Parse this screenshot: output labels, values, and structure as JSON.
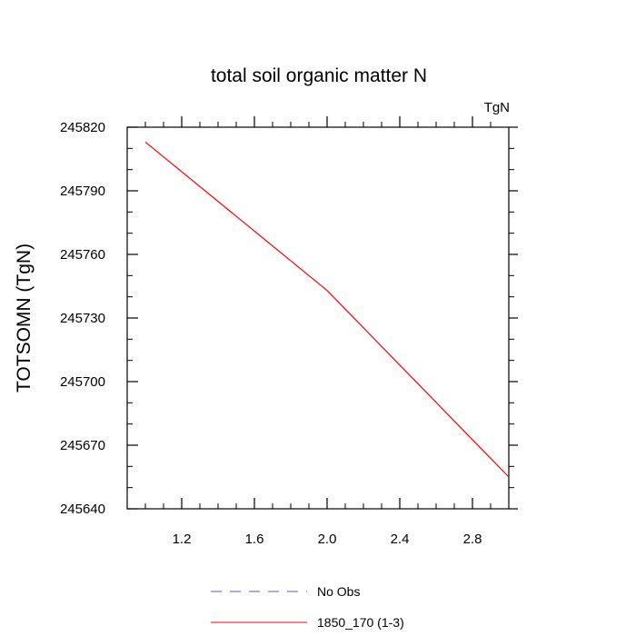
{
  "chart_data": {
    "type": "line",
    "title": "total soil organic matter N",
    "units": "TgN",
    "xlabel": "",
    "ylabel": "TOTSOMN  (TgN)",
    "xlim": [
      0.9,
      3.0
    ],
    "ylim": [
      245640,
      245820
    ],
    "xticks": [
      "1.2",
      "1.6",
      "2.0",
      "2.4",
      "2.8"
    ],
    "yticks": [
      "245640",
      "245670",
      "245700",
      "245730",
      "245760",
      "245790",
      "245820"
    ],
    "grid": false,
    "legend_position": "bottom",
    "series": [
      {
        "name": "No Obs",
        "color": "#5555dd",
        "dash": "dashed",
        "x": [],
        "y": []
      },
      {
        "name": "1850_170 (1-3)",
        "color": "#ff0000",
        "dash": "solid",
        "x": [
          1.0,
          2.0,
          3.0
        ],
        "y": [
          245813,
          245743,
          245655
        ]
      }
    ]
  }
}
